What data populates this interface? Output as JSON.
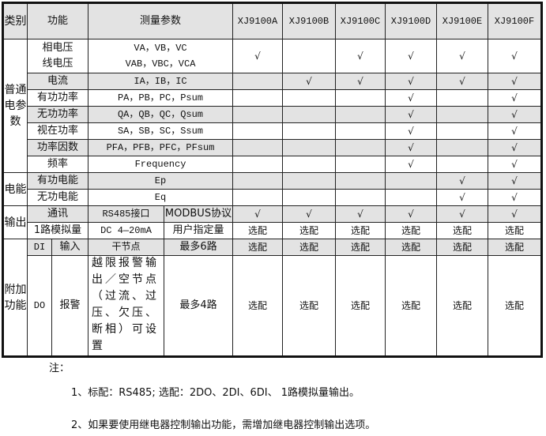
{
  "header": {
    "category": "类别",
    "function": "功能",
    "params": "测量参数",
    "models": [
      "XJ9100A",
      "XJ9100B",
      "XJ9100C",
      "XJ9100D",
      "XJ9100E",
      "XJ9100F"
    ]
  },
  "sections": [
    {
      "category": "普通电参数",
      "rows": [
        {
          "function": [
            "相电压",
            "线电压"
          ],
          "params": [
            "VA，VB，VC",
            "VAB，VBC，VCA"
          ],
          "marks": [
            "√",
            "",
            "√",
            "√",
            "√",
            "√"
          ],
          "shaded": false
        },
        {
          "function": [
            "电流"
          ],
          "params": [
            "IA，IB，IC"
          ],
          "marks": [
            "",
            "√",
            "√",
            "√",
            "√",
            "√"
          ],
          "shaded": true
        },
        {
          "function": [
            "有功功率"
          ],
          "params": [
            "PA，PB，PC，Psum"
          ],
          "marks": [
            "",
            "",
            "",
            "√",
            "",
            "√"
          ],
          "shaded": false
        },
        {
          "function": [
            "无功功率"
          ],
          "params": [
            "QA，QB，QC，Qsum"
          ],
          "marks": [
            "",
            "",
            "",
            "√",
            "",
            "√"
          ],
          "shaded": true
        },
        {
          "function": [
            "视在功率"
          ],
          "params": [
            "SA，SB，SC，Ssum"
          ],
          "marks": [
            "",
            "",
            "",
            "√",
            "",
            "√"
          ],
          "shaded": false
        },
        {
          "function": [
            "功率因数"
          ],
          "params": [
            "PFA，PFB，PFC，PFsum"
          ],
          "marks": [
            "",
            "",
            "",
            "√",
            "",
            "√"
          ],
          "shaded": true
        },
        {
          "function": [
            "频率"
          ],
          "params": [
            "Frequency"
          ],
          "marks": [
            "",
            "",
            "",
            "√",
            "",
            "√"
          ],
          "shaded": false
        }
      ]
    },
    {
      "category": "电能",
      "rows": [
        {
          "function": [
            "有功电能"
          ],
          "params": [
            "Ep"
          ],
          "marks": [
            "",
            "",
            "",
            "",
            "√",
            "√"
          ],
          "shaded": true
        },
        {
          "function": [
            "无功电能"
          ],
          "params": [
            "Eq"
          ],
          "marks": [
            "",
            "",
            "",
            "",
            "√",
            "√"
          ],
          "shaded": false
        }
      ]
    },
    {
      "category": "输出",
      "rows": [
        {
          "function": [
            "通讯"
          ],
          "params": [
            "RS485接口",
            "MODBUS协议"
          ],
          "split": true,
          "marks": [
            "√",
            "√",
            "√",
            "√",
            "√",
            "√"
          ],
          "shaded": true
        },
        {
          "function": [
            "1路模拟量"
          ],
          "params": [
            "DC 4—20mA",
            "用户指定量"
          ],
          "split": true,
          "marks": [
            "选配",
            "选配",
            "选配",
            "选配",
            "选配",
            "选配"
          ],
          "shaded": false
        }
      ]
    },
    {
      "category": "附加功能",
      "rows": [
        {
          "function": [
            "DI",
            "输入"
          ],
          "sub": true,
          "params": [
            "干节点",
            "最多6路"
          ],
          "split": true,
          "marks": [
            "选配",
            "选配",
            "选配",
            "选配",
            "选配",
            "选配"
          ],
          "shaded": true
        },
        {
          "function": [
            "DO",
            "报警"
          ],
          "sub": true,
          "params": [
            "越限报警输出／空节点（过流、过压、欠压、断相）可设置",
            "最多4路"
          ],
          "split": true,
          "marks": [
            "选配",
            "选配",
            "选配",
            "选配",
            "选配",
            "选配"
          ],
          "shaded": false
        }
      ]
    }
  ],
  "notes": {
    "title": "注：",
    "items": [
      "1、标配：RS485; 选配：2DO、2DI、6DI、 1路模拟量输出。",
      "2、如果要使用继电器控制输出功能，需增加继电器控制输出选项。"
    ]
  }
}
